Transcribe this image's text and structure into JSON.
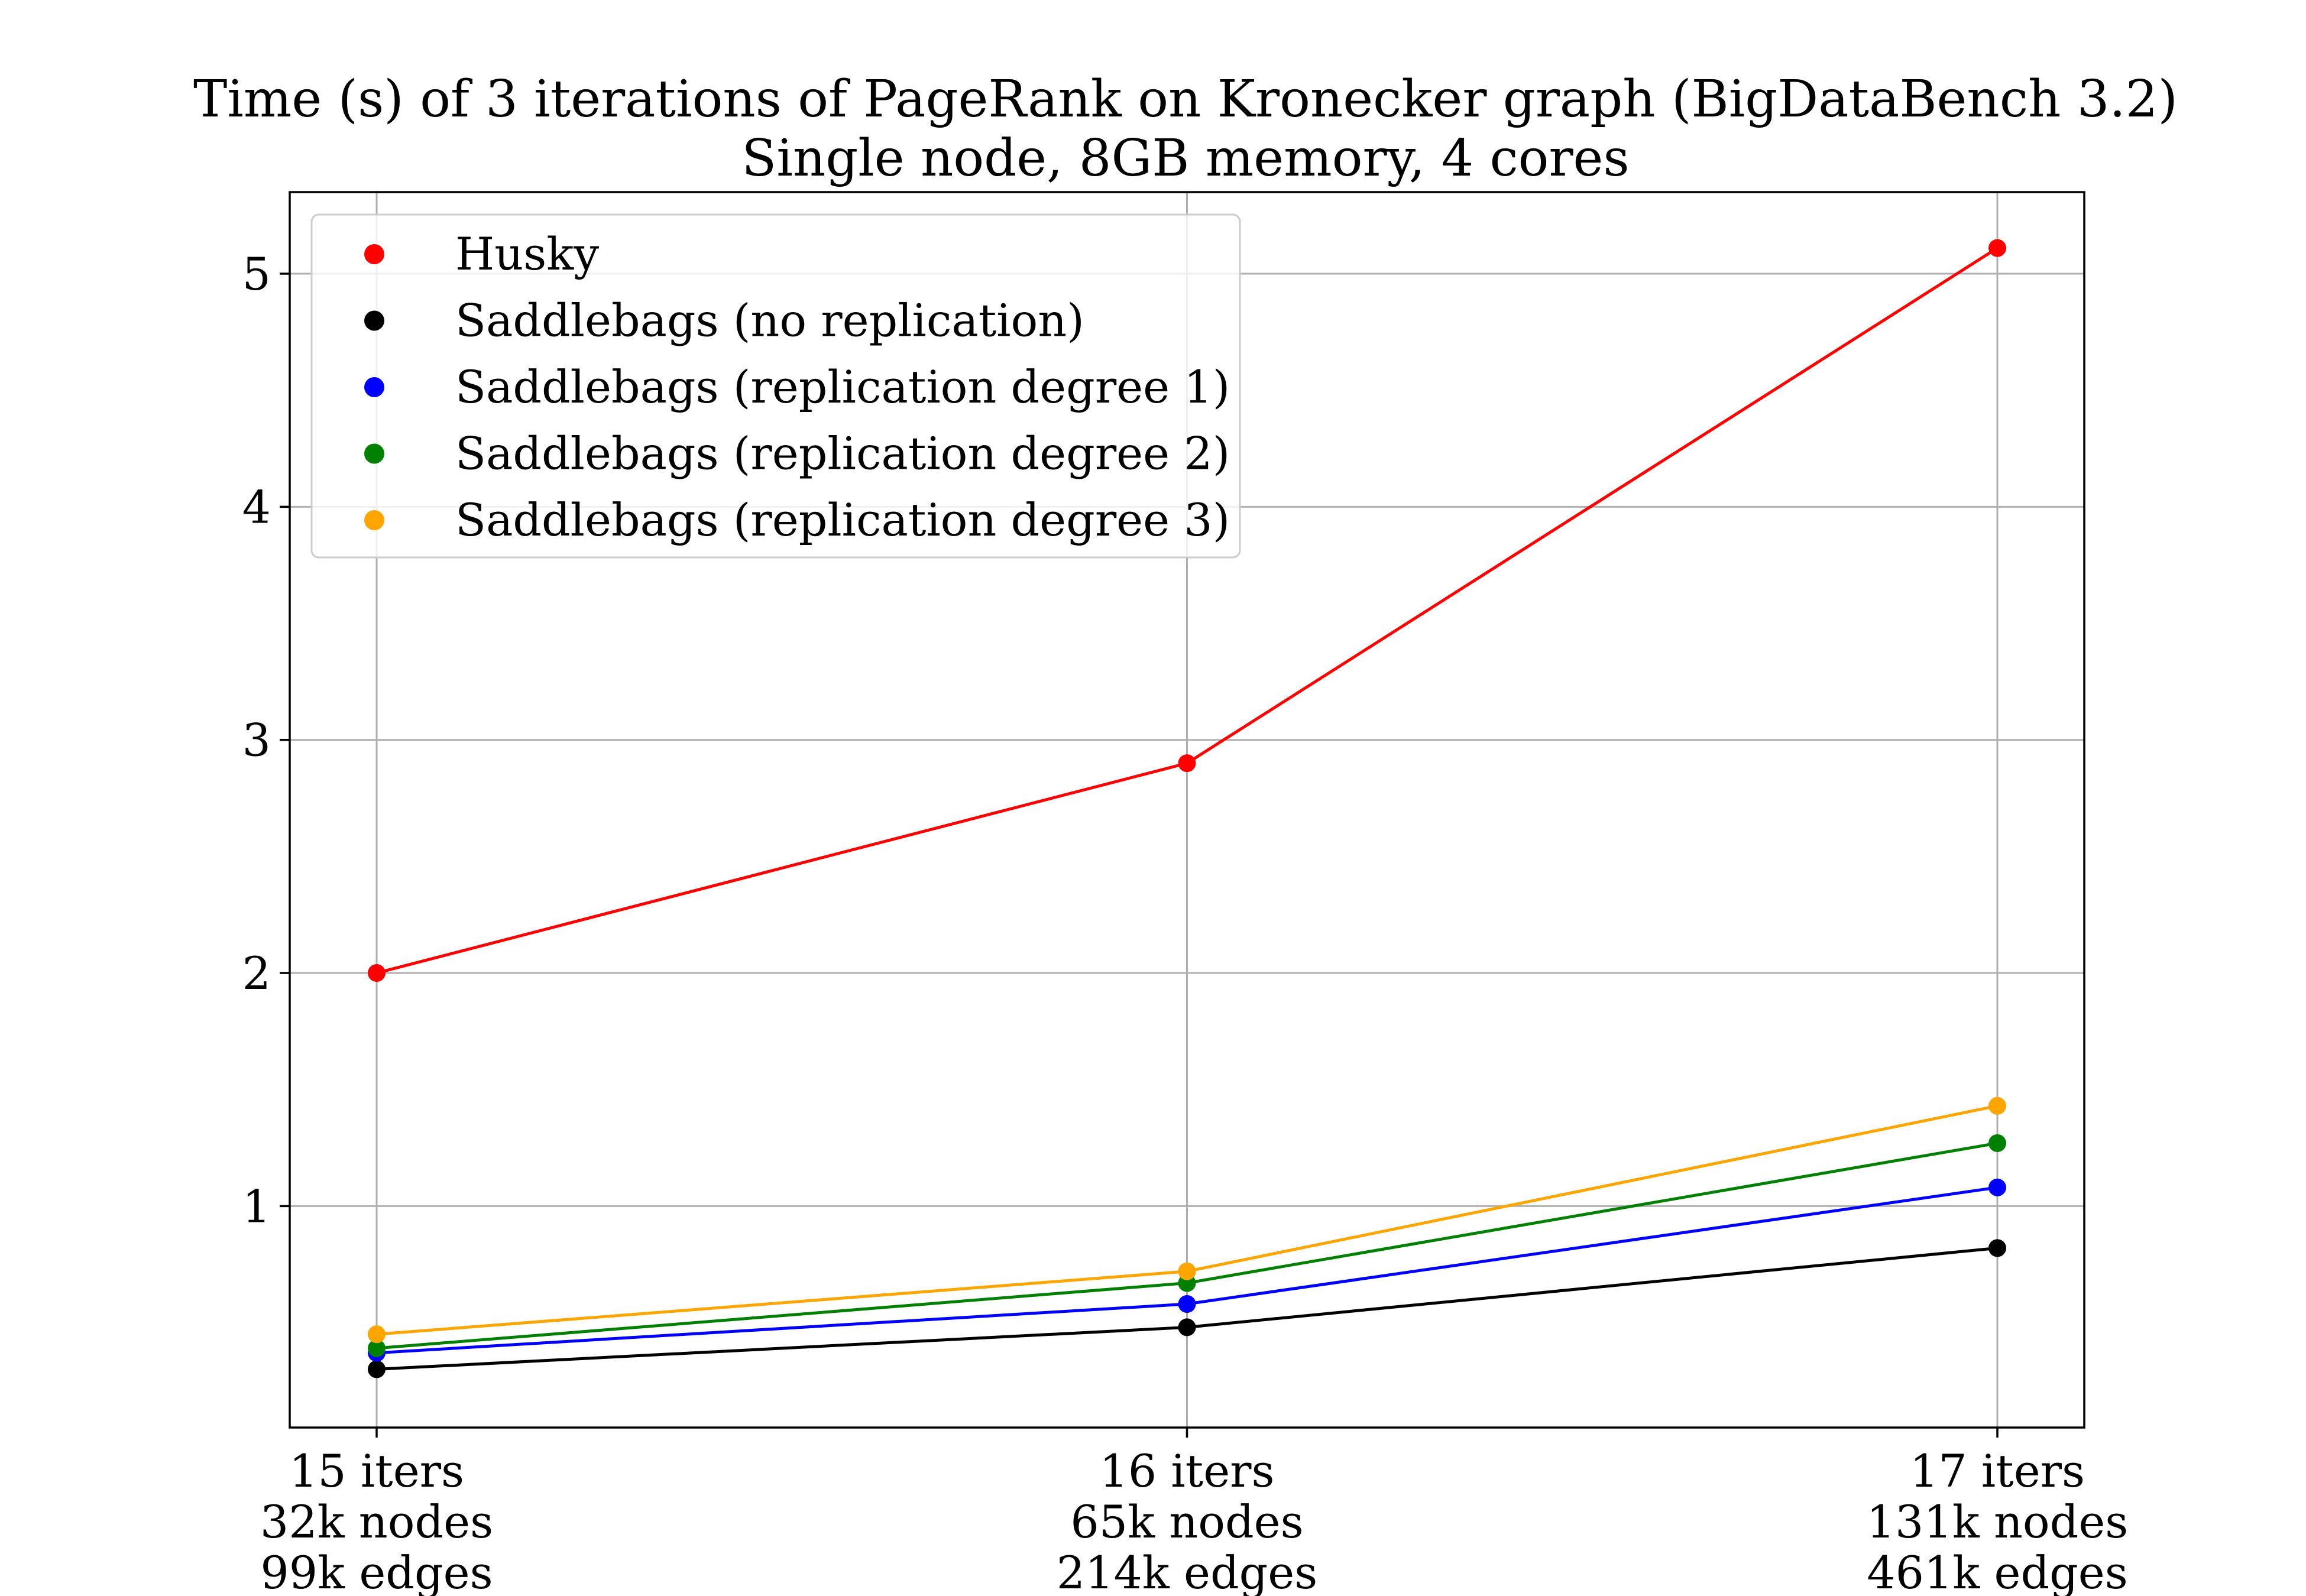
{
  "chart_data": {
    "type": "line",
    "title": "Time (s) of 3 iterations of PageRank on Kronecker graph (BigDataBench 3.2)",
    "subtitle": "Single node, 8GB memory, 4 cores",
    "xlabel": "",
    "ylabel": "",
    "categories": [
      [
        "15 iters",
        "32k nodes",
        "99k edges"
      ],
      [
        "16 iters",
        "65k nodes",
        "214k edges"
      ],
      [
        "17 iters",
        "131k nodes",
        "461k edges"
      ]
    ],
    "yticks": [
      "1",
      "2",
      "3",
      "4",
      "5"
    ],
    "ylim": [
      0.05,
      5.35
    ],
    "grid": true,
    "legend_position": "top-left",
    "series": [
      {
        "name": "Husky",
        "color": "#ff0000",
        "values": [
          2.0,
          2.9,
          5.11
        ]
      },
      {
        "name": "Saddlebags (no replication)",
        "color": "#000000",
        "values": [
          0.3,
          0.48,
          0.82
        ]
      },
      {
        "name": "Saddlebags (replication degree 1)",
        "color": "#0000ff",
        "values": [
          0.37,
          0.58,
          1.08
        ]
      },
      {
        "name": "Saddlebags (replication degree 2)",
        "color": "#008000",
        "values": [
          0.39,
          0.67,
          1.27
        ]
      },
      {
        "name": "Saddlebags (replication degree 3)",
        "color": "#ffa500",
        "values": [
          0.45,
          0.72,
          1.43
        ]
      }
    ]
  }
}
